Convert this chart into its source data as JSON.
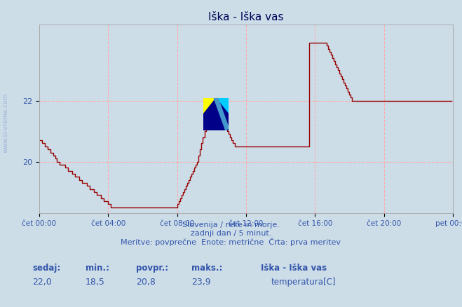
{
  "title": "Iška - Iška vas",
  "bg_color": "#ccdde8",
  "line_color": "#990000",
  "grid_color": "#ffaaaa",
  "title_color": "#000055",
  "tick_color": "#3355aa",
  "label_color": "#3355aa",
  "ylim_min": 18.3,
  "ylim_max": 24.5,
  "ytick_vals": [
    20,
    22
  ],
  "xtick_positions": [
    0,
    48,
    96,
    144,
    192,
    240,
    288
  ],
  "xtick_labels": [
    "čet 00:00",
    "čet 04:00",
    "čet 08:00",
    "čet 12:00",
    "čet 16:00",
    "čet 20:00",
    "pet 00:00"
  ],
  "subtitle_line1": "Slovenija / reke in morje.",
  "subtitle_line2": "zadnji dan / 5 minut.",
  "subtitle_line3": "Meritve: povprečne  Enote: metrične  Črta: prva meritev",
  "stat_sedaj_label": "sedaj:",
  "stat_min_label": "min.:",
  "stat_povpr_label": "povpr.:",
  "stat_maks_label": "maks.:",
  "stat_sedaj": "22,0",
  "stat_min": "18,5",
  "stat_povpr": "20,8",
  "stat_maks": "23,9",
  "legend_station": "Iška - Iška vas",
  "legend_series": "temperatura[C]",
  "sivreme_text": "www.si-vreme.com",
  "data_y": [
    20.7,
    20.7,
    20.6,
    20.6,
    20.5,
    20.5,
    20.4,
    20.4,
    20.3,
    20.3,
    20.2,
    20.1,
    20.0,
    20.0,
    19.9,
    19.9,
    19.9,
    19.9,
    19.8,
    19.8,
    19.7,
    19.7,
    19.7,
    19.6,
    19.6,
    19.5,
    19.5,
    19.5,
    19.4,
    19.4,
    19.3,
    19.3,
    19.3,
    19.2,
    19.2,
    19.1,
    19.1,
    19.1,
    19.0,
    19.0,
    18.9,
    18.9,
    18.9,
    18.8,
    18.8,
    18.7,
    18.7,
    18.7,
    18.6,
    18.6,
    18.5,
    18.5,
    18.5,
    18.5,
    18.5,
    18.5,
    18.5,
    18.5,
    18.5,
    18.5,
    18.5,
    18.5,
    18.5,
    18.5,
    18.5,
    18.5,
    18.5,
    18.5,
    18.5,
    18.5,
    18.5,
    18.5,
    18.5,
    18.5,
    18.5,
    18.5,
    18.5,
    18.5,
    18.5,
    18.5,
    18.5,
    18.5,
    18.5,
    18.5,
    18.5,
    18.5,
    18.5,
    18.5,
    18.5,
    18.5,
    18.5,
    18.5,
    18.5,
    18.5,
    18.5,
    18.5,
    18.6,
    18.7,
    18.8,
    18.9,
    19.0,
    19.1,
    19.2,
    19.3,
    19.4,
    19.5,
    19.6,
    19.7,
    19.8,
    19.9,
    20.0,
    20.2,
    20.4,
    20.6,
    20.8,
    21.0,
    21.2,
    21.5,
    21.8,
    21.9,
    21.9,
    21.9,
    21.9,
    21.8,
    21.7,
    21.6,
    21.5,
    21.4,
    21.3,
    21.2,
    21.1,
    21.0,
    20.9,
    20.8,
    20.7,
    20.6,
    20.5,
    20.5,
    20.5,
    20.5,
    20.5,
    20.5,
    20.5,
    20.5,
    20.5,
    20.5,
    20.5,
    20.5,
    20.5,
    20.5,
    20.5,
    20.5,
    20.5,
    20.5,
    20.5,
    20.5,
    20.5,
    20.5,
    20.5,
    20.5,
    20.5,
    20.5,
    20.5,
    20.5,
    20.5,
    20.5,
    20.5,
    20.5,
    20.5,
    20.5,
    20.5,
    20.5,
    20.5,
    20.5,
    20.5,
    20.5,
    20.5,
    20.5,
    20.5,
    20.5,
    20.5,
    20.5,
    20.5,
    20.5,
    20.5,
    20.5,
    20.5,
    20.5,
    23.9,
    23.9,
    23.9,
    23.9,
    23.9,
    23.9,
    23.9,
    23.9,
    23.9,
    23.9,
    23.9,
    23.9,
    23.8,
    23.7,
    23.6,
    23.5,
    23.4,
    23.3,
    23.2,
    23.1,
    23.0,
    22.9,
    22.8,
    22.7,
    22.6,
    22.5,
    22.4,
    22.3,
    22.2,
    22.1,
    22.0,
    22.0,
    22.0,
    22.0,
    22.0,
    22.0,
    22.0,
    22.0,
    22.0,
    22.0,
    22.0,
    22.0,
    22.0,
    22.0,
    22.0,
    22.0,
    22.0,
    22.0,
    22.0,
    22.0,
    22.0,
    22.0,
    22.0,
    22.0,
    22.0,
    22.0,
    22.0,
    22.0,
    22.0,
    22.0,
    22.0,
    22.0,
    22.0,
    22.0,
    22.0,
    22.0,
    22.0,
    22.0,
    22.0,
    22.0,
    22.0,
    22.0,
    22.0,
    22.0,
    22.0,
    22.0,
    22.0,
    22.0,
    22.0,
    22.0,
    22.0,
    22.0,
    22.0,
    22.0,
    22.0,
    22.0,
    22.0,
    22.0,
    22.0,
    22.0,
    22.0,
    22.0,
    22.0,
    22.0,
    22.0,
    22.0,
    22.0,
    22.0,
    22.0,
    22.0
  ]
}
